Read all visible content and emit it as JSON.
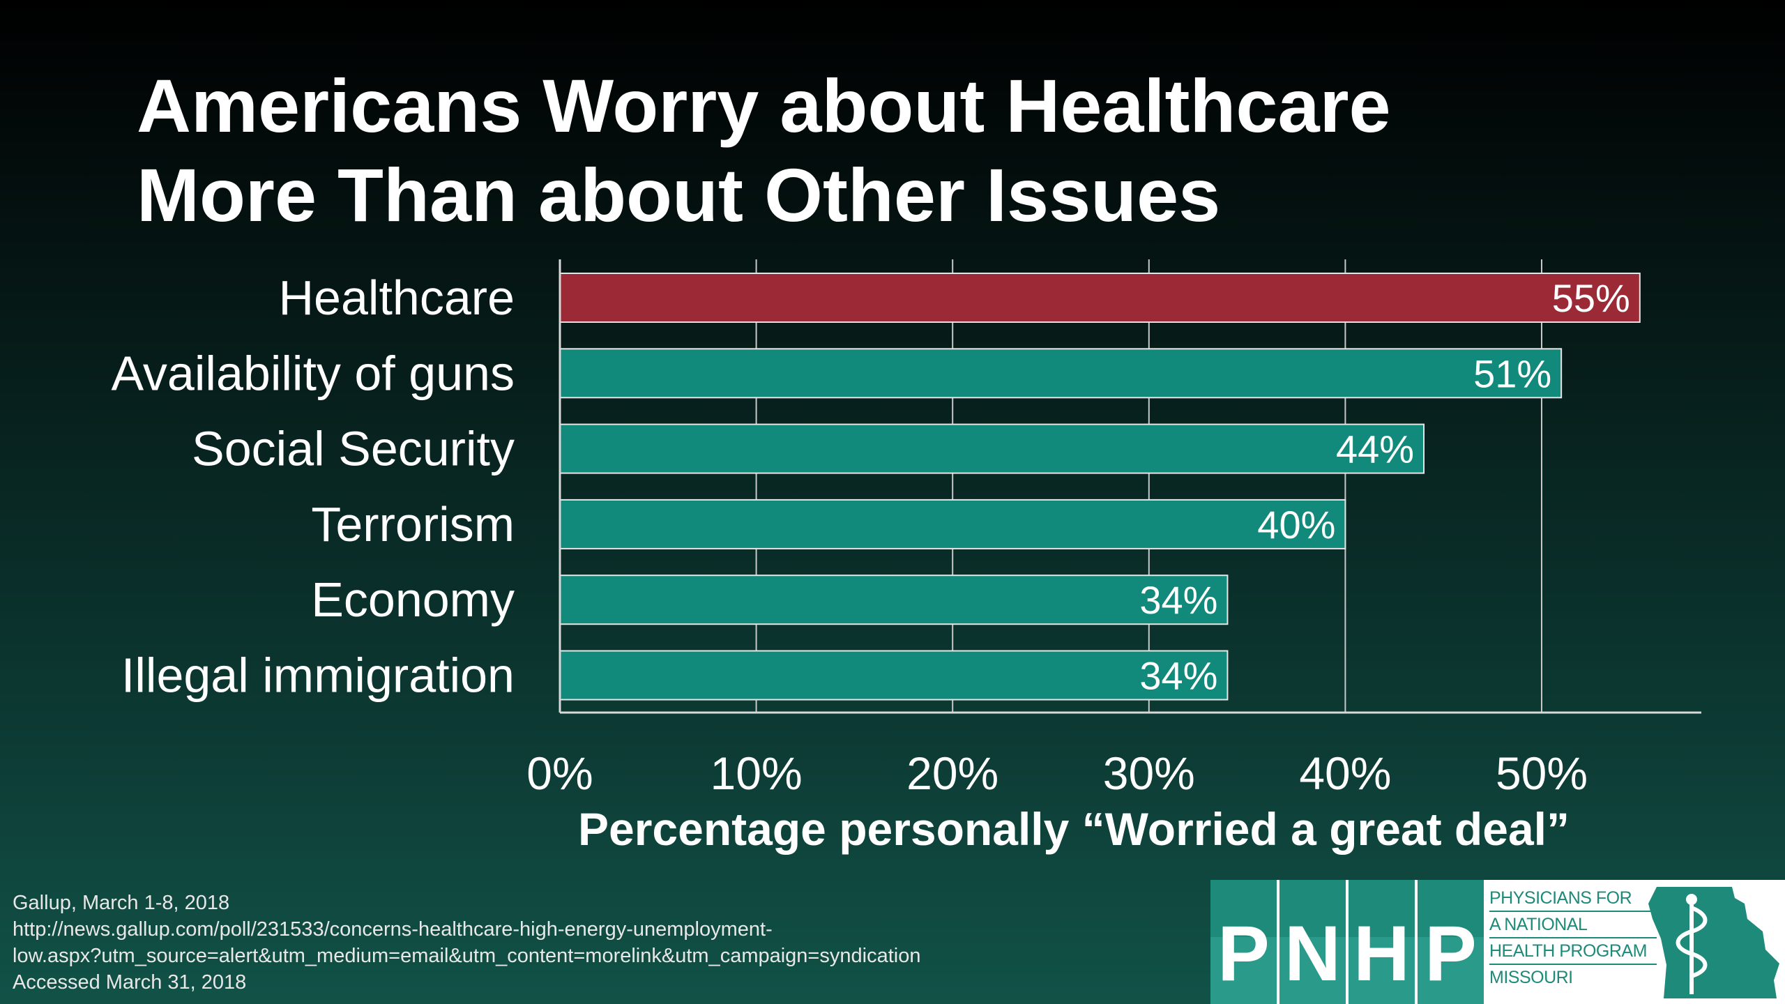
{
  "title": {
    "line1": "Americans Worry about Healthcare",
    "line2": "More Than about Other Issues"
  },
  "chart_data": {
    "type": "bar",
    "orientation": "horizontal",
    "categories": [
      "Healthcare",
      "Availability of guns",
      "Social Security",
      "Terrorism",
      "Economy",
      "Illegal immigration"
    ],
    "values": [
      55,
      51,
      44,
      40,
      34,
      34
    ],
    "value_labels": [
      "55%",
      "51%",
      "44%",
      "40%",
      "34%",
      "34%"
    ],
    "colors": [
      "#9c2a36",
      "#128a7b",
      "#128a7b",
      "#128a7b",
      "#128a7b",
      "#128a7b"
    ],
    "xlim": [
      0,
      58
    ],
    "xticks": [
      0,
      10,
      20,
      30,
      40,
      50
    ],
    "xtick_labels": [
      "0%",
      "10%",
      "20%",
      "30%",
      "40%",
      "50%"
    ],
    "xlabel": "Percentage personally “Worried a great deal”",
    "grid": true,
    "legend": "none"
  },
  "source": {
    "line1": "Gallup, March 1-8, 2018",
    "line2": "http://news.gallup.com/poll/231533/concerns-healthcare-high-energy-unemployment-",
    "line3": "low.aspx?utm_source=alert&utm_medium=email&utm_content=morelink&utm_campaign=syndication",
    "line4": "Accessed March 31, 2018"
  },
  "logo": {
    "letters": [
      "P",
      "N",
      "H",
      "P"
    ],
    "text_lines": [
      "PHYSICIANS FOR",
      "A NATIONAL",
      "HEALTH PROGRAM",
      "MISSOURI"
    ],
    "icon": "caduceus-missouri-icon",
    "color": "#1d8a7a"
  }
}
